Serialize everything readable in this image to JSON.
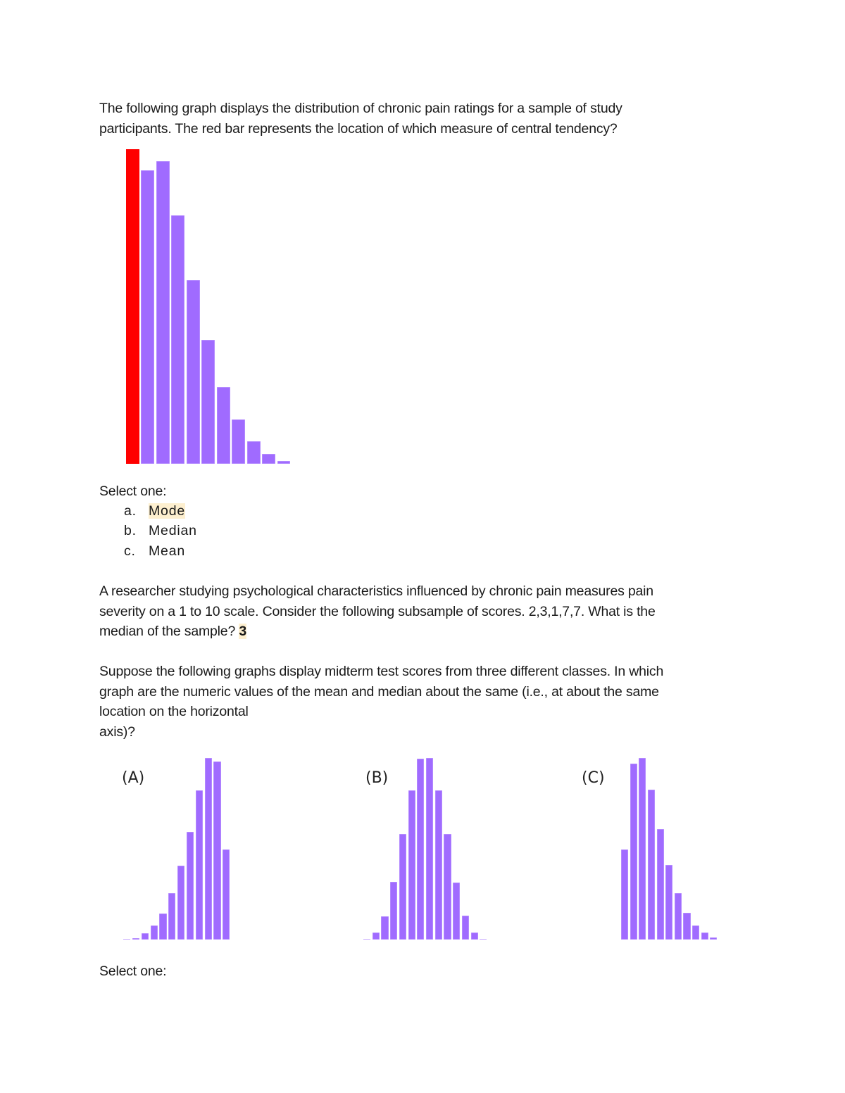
{
  "question1": {
    "text_line1": "The following graph displays the distribution of chronic pain ratings for a sample of study",
    "text_line2": "participants. The red bar represents the location of which measure of central tendency?",
    "select_label": "Select one:",
    "options": [
      {
        "letter": "a.",
        "label": "Mode",
        "highlighted": true
      },
      {
        "letter": "b.",
        "label": "Median",
        "highlighted": false
      },
      {
        "letter": "c.",
        "label": "Mean",
        "highlighted": false
      }
    ]
  },
  "question2": {
    "text_line1": "A researcher studying psychological characteristics influenced by chronic pain measures pain",
    "text_line2": "severity on a 1 to 10 scale. Consider the following subsample of scores. 2,3,1,7,7. What is the",
    "text_line3": "median of the sample? ",
    "answer": "3"
  },
  "question3": {
    "text_line1": "Suppose the following graphs display midterm test scores from three different classes. In which",
    "text_line2": "graph are the numeric values of the mean and median about the same (i.e., at about the same",
    "text_line3": "location on the horizontal",
    "text_line4": "axis)?",
    "select_label": "Select one:"
  },
  "colors": {
    "bar": "#a06bff",
    "highlight_bar": "#ff0000",
    "answer_highlight": "#fdefcf"
  },
  "chart_data": [
    {
      "type": "bar",
      "title": "Distribution of chronic pain ratings",
      "xlabel": "",
      "ylabel": "",
      "categories": [
        "1",
        "2",
        "3",
        "4",
        "5",
        "6",
        "7",
        "8",
        "9",
        "10",
        "11"
      ],
      "values": [
        447,
        417,
        430,
        353,
        261,
        176,
        109,
        63,
        32,
        14,
        4
      ],
      "highlighted_index": 0,
      "highlight_color": "#ff0000",
      "grid": false
    },
    {
      "type": "bar",
      "title": "(A)",
      "categories": [
        "1",
        "2",
        "3",
        "4",
        "5",
        "6",
        "7",
        "8",
        "9",
        "10",
        "11",
        "12"
      ],
      "values": [
        1,
        2,
        9,
        20,
        37,
        66,
        105,
        153,
        212,
        258,
        253,
        128
      ],
      "grid": false
    },
    {
      "type": "bar",
      "title": "(B)",
      "categories": [
        "1",
        "2",
        "3",
        "4",
        "5",
        "6",
        "7",
        "8",
        "9",
        "10",
        "11",
        "12",
        "13",
        "14"
      ],
      "values": [
        1,
        10,
        33,
        82,
        150,
        212,
        257,
        258,
        212,
        150,
        81,
        34,
        10,
        1
      ],
      "grid": false
    },
    {
      "type": "bar",
      "title": "(C)",
      "categories": [
        "1",
        "2",
        "3",
        "4",
        "5",
        "6",
        "7",
        "8",
        "9",
        "10",
        "11"
      ],
      "values": [
        128,
        250,
        258,
        213,
        157,
        106,
        66,
        38,
        20,
        10,
        3
      ],
      "grid": false
    }
  ]
}
